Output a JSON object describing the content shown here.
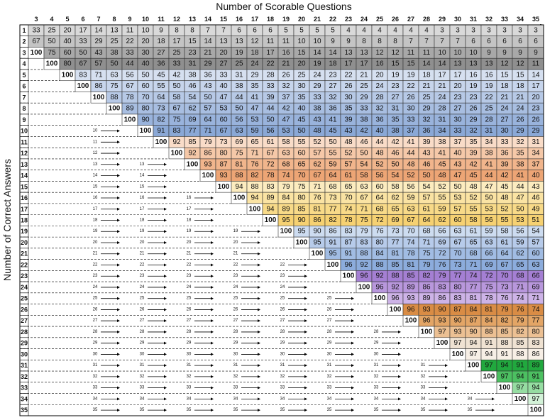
{
  "title_x": "Number of Scorable Questions",
  "title_y": "Number of Correct Answers",
  "columns": [
    3,
    4,
    5,
    6,
    7,
    8,
    9,
    10,
    11,
    12,
    13,
    14,
    15,
    16,
    17,
    18,
    19,
    20,
    21,
    22,
    23,
    24,
    25,
    26,
    27,
    28,
    29,
    30,
    31,
    32,
    33,
    34,
    35
  ],
  "rows": [
    {
      "label": 1,
      "color": "#d9d9d9",
      "values": [
        33,
        25,
        20,
        17,
        14,
        13,
        11,
        10,
        9,
        8,
        8,
        7,
        7,
        6,
        6,
        6,
        5,
        5,
        5,
        5,
        4,
        4,
        4,
        4,
        4,
        4,
        3,
        3,
        3,
        3,
        3,
        3,
        3
      ]
    },
    {
      "label": 2,
      "color": "#c4c4c4",
      "values": [
        67,
        50,
        40,
        33,
        29,
        25,
        22,
        20,
        18,
        17,
        15,
        14,
        13,
        13,
        12,
        11,
        11,
        10,
        10,
        9,
        9,
        8,
        8,
        8,
        7,
        7,
        7,
        7,
        6,
        6,
        6,
        6,
        6
      ]
    },
    {
      "label": 3,
      "color": "#a8a8a8",
      "values": [
        100,
        75,
        60,
        50,
        43,
        38,
        33,
        30,
        27,
        25,
        23,
        21,
        20,
        19,
        18,
        17,
        16,
        15,
        14,
        14,
        13,
        13,
        12,
        12,
        11,
        11,
        10,
        10,
        10,
        9,
        9,
        9,
        9
      ]
    },
    {
      "label": 4,
      "color": "#8f8f8f",
      "values": [
        100,
        80,
        67,
        57,
        50,
        44,
        40,
        36,
        33,
        31,
        29,
        27,
        25,
        24,
        22,
        21,
        20,
        19,
        18,
        17,
        17,
        16,
        15,
        15,
        14,
        14,
        13,
        13,
        13,
        12,
        12,
        11
      ]
    },
    {
      "label": 5,
      "color": "#d6e0f0",
      "values": [
        100,
        83,
        71,
        63,
        56,
        50,
        45,
        42,
        38,
        36,
        33,
        31,
        29,
        28,
        26,
        25,
        24,
        23,
        22,
        21,
        20,
        19,
        19,
        18,
        17,
        17,
        16,
        16,
        15,
        15,
        14
      ]
    },
    {
      "label": 6,
      "color": "#c7d5ec",
      "values": [
        100,
        86,
        75,
        67,
        60,
        55,
        50,
        46,
        43,
        40,
        38,
        35,
        33,
        32,
        30,
        29,
        27,
        26,
        25,
        24,
        23,
        22,
        21,
        21,
        20,
        19,
        19,
        18,
        18,
        17
      ]
    },
    {
      "label": 7,
      "color": "#b7c9e6",
      "values": [
        100,
        88,
        78,
        70,
        64,
        58,
        54,
        50,
        47,
        44,
        41,
        39,
        37,
        35,
        33,
        32,
        30,
        29,
        28,
        27,
        26,
        25,
        24,
        23,
        23,
        22,
        21,
        21,
        20
      ]
    },
    {
      "label": 8,
      "color": "#a8bee1",
      "values": [
        100,
        89,
        80,
        73,
        67,
        62,
        57,
        53,
        50,
        47,
        44,
        42,
        40,
        38,
        36,
        35,
        33,
        32,
        31,
        30,
        29,
        28,
        27,
        26,
        25,
        24,
        24,
        23
      ]
    },
    {
      "label": 9,
      "color": "#99b3dc",
      "values": [
        100,
        90,
        82,
        75,
        69,
        64,
        60,
        56,
        53,
        50,
        47,
        45,
        43,
        41,
        39,
        38,
        36,
        35,
        33,
        32,
        31,
        30,
        29,
        28,
        27,
        26,
        26
      ]
    },
    {
      "label": 10,
      "color": "#8aa8d6",
      "values": [
        100,
        91,
        83,
        77,
        71,
        67,
        63,
        59,
        56,
        53,
        50,
        48,
        45,
        43,
        42,
        40,
        38,
        37,
        36,
        34,
        33,
        32,
        31,
        30,
        29,
        29
      ]
    },
    {
      "label": 11,
      "color": "#f9dcc8",
      "values": [
        100,
        92,
        85,
        79,
        73,
        69,
        65,
        61,
        58,
        55,
        52,
        50,
        48,
        46,
        44,
        42,
        41,
        39,
        38,
        37,
        35,
        34,
        33,
        32,
        31
      ]
    },
    {
      "label": 12,
      "color": "#f5c8a8",
      "values": [
        100,
        92,
        86,
        80,
        75,
        71,
        67,
        63,
        60,
        57,
        55,
        52,
        50,
        48,
        46,
        44,
        43,
        41,
        40,
        39,
        38,
        36,
        35,
        34
      ]
    },
    {
      "label": 13,
      "color": "#f1b58c",
      "values": [
        100,
        93,
        87,
        81,
        76,
        72,
        68,
        65,
        62,
        59,
        57,
        54,
        52,
        50,
        48,
        46,
        45,
        43,
        42,
        41,
        39,
        38,
        37
      ]
    },
    {
      "label": 14,
      "color": "#eda575",
      "values": [
        100,
        93,
        88,
        82,
        78,
        74,
        70,
        67,
        64,
        61,
        58,
        56,
        54,
        52,
        50,
        48,
        47,
        45,
        44,
        42,
        41,
        40
      ]
    },
    {
      "label": 15,
      "color": "#fcecbf",
      "values": [
        100,
        94,
        88,
        83,
        79,
        75,
        71,
        68,
        65,
        63,
        60,
        58,
        56,
        54,
        52,
        50,
        48,
        47,
        45,
        44,
        43
      ]
    },
    {
      "label": 16,
      "color": "#fae3a3",
      "values": [
        100,
        94,
        89,
        84,
        80,
        76,
        73,
        70,
        67,
        64,
        62,
        59,
        57,
        55,
        53,
        52,
        50,
        48,
        47,
        46
      ]
    },
    {
      "label": 17,
      "color": "#f8da88",
      "values": [
        100,
        94,
        89,
        85,
        81,
        77,
        74,
        71,
        68,
        65,
        63,
        61,
        59,
        57,
        55,
        53,
        52,
        50,
        49
      ]
    },
    {
      "label": 18,
      "color": "#f6d172",
      "values": [
        100,
        95,
        90,
        86,
        82,
        78,
        75,
        72,
        69,
        67,
        64,
        62,
        60,
        58,
        56,
        55,
        53,
        51
      ]
    },
    {
      "label": 19,
      "color": "#cddcf0",
      "values": [
        100,
        95,
        90,
        86,
        83,
        79,
        76,
        73,
        70,
        68,
        66,
        63,
        61,
        59,
        58,
        56,
        54
      ]
    },
    {
      "label": 20,
      "color": "#b7cbea",
      "values": [
        100,
        95,
        91,
        87,
        83,
        80,
        77,
        74,
        71,
        69,
        67,
        65,
        63,
        61,
        59,
        57
      ]
    },
    {
      "label": 21,
      "color": "#a1bce3",
      "values": [
        100,
        95,
        91,
        88,
        84,
        81,
        78,
        75,
        72,
        70,
        68,
        66,
        64,
        62,
        60
      ]
    },
    {
      "label": 22,
      "color": "#8cacdc",
      "values": [
        100,
        96,
        92,
        88,
        85,
        81,
        79,
        76,
        73,
        71,
        69,
        67,
        65,
        63
      ]
    },
    {
      "label": 23,
      "color": "#a47fd3",
      "values": [
        100,
        96,
        92,
        88,
        85,
        82,
        79,
        77,
        74,
        72,
        70,
        68,
        66
      ]
    },
    {
      "label": 24,
      "color": "#b897dc",
      "values": [
        100,
        96,
        92,
        89,
        86,
        83,
        80,
        77,
        75,
        73,
        71,
        69
      ]
    },
    {
      "label": 25,
      "color": "#cdb3e7",
      "values": [
        100,
        96,
        93,
        89,
        86,
        83,
        81,
        78,
        76,
        74,
        71
      ]
    },
    {
      "label": 26,
      "color": "#d98c45",
      "values": [
        100,
        96,
        93,
        90,
        87,
        84,
        81,
        79,
        76,
        74
      ]
    },
    {
      "label": 27,
      "color": "#e3a566",
      "values": [
        100,
        96,
        93,
        90,
        87,
        84,
        82,
        79,
        77
      ]
    },
    {
      "label": 28,
      "color": "#ecc093",
      "values": [
        100,
        97,
        93,
        90,
        88,
        85,
        82,
        80
      ]
    },
    {
      "label": 29,
      "color": "#efe2d2",
      "values": [
        100,
        97,
        94,
        91,
        88,
        85,
        83
      ]
    },
    {
      "label": 30,
      "color": "#f7efe6",
      "values": [
        100,
        97,
        94,
        91,
        88,
        86
      ]
    },
    {
      "label": 31,
      "color": "#21a83e",
      "values": [
        100,
        97,
        94,
        91,
        89
      ]
    },
    {
      "label": 32,
      "color": "#4cc061",
      "values": [
        100,
        97,
        94,
        91
      ]
    },
    {
      "label": 33,
      "color": "#96dda2",
      "values": [
        100,
        97,
        94
      ]
    },
    {
      "label": 34,
      "color": "#d3f2d8",
      "values": [
        100,
        97
      ]
    },
    {
      "label": 35,
      "color": "#ffffff",
      "values": [
        100
      ]
    }
  ]
}
